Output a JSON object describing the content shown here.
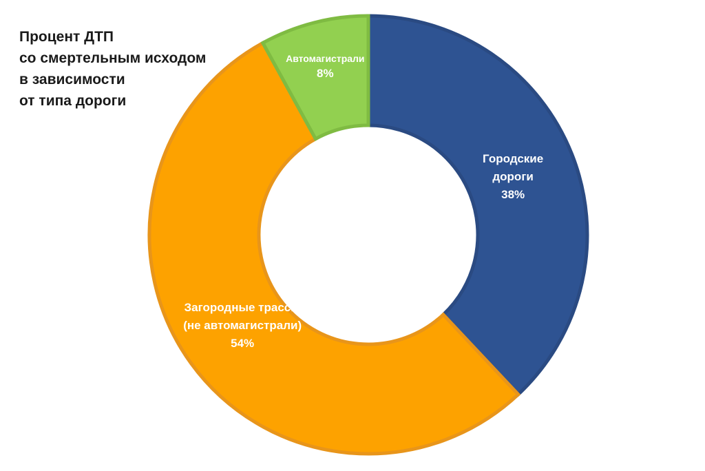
{
  "chart_data": {
    "type": "pie",
    "variant": "donut",
    "title_lines": [
      "Процент ДТП",
      "со смертельным исходом",
      "в зависимости",
      "от типа дороги"
    ],
    "unit": "%",
    "slices": [
      {
        "label_lines": [
          "Городские",
          "дороги"
        ],
        "value": 38,
        "value_label": "38%",
        "fill": "#2e5392",
        "stroke": "#2a4a82"
      },
      {
        "label_lines": [
          "Загородные трассы",
          "(не автомагистрали)"
        ],
        "value": 54,
        "value_label": "54%",
        "fill": "#fda200",
        "stroke": "#e8951a"
      },
      {
        "label_lines": [
          "Автомагистрали"
        ],
        "value": 8,
        "value_label": "8%",
        "fill": "#92d050",
        "stroke": "#7fbb42"
      }
    ],
    "legend": "none",
    "data_labels": "inside"
  }
}
